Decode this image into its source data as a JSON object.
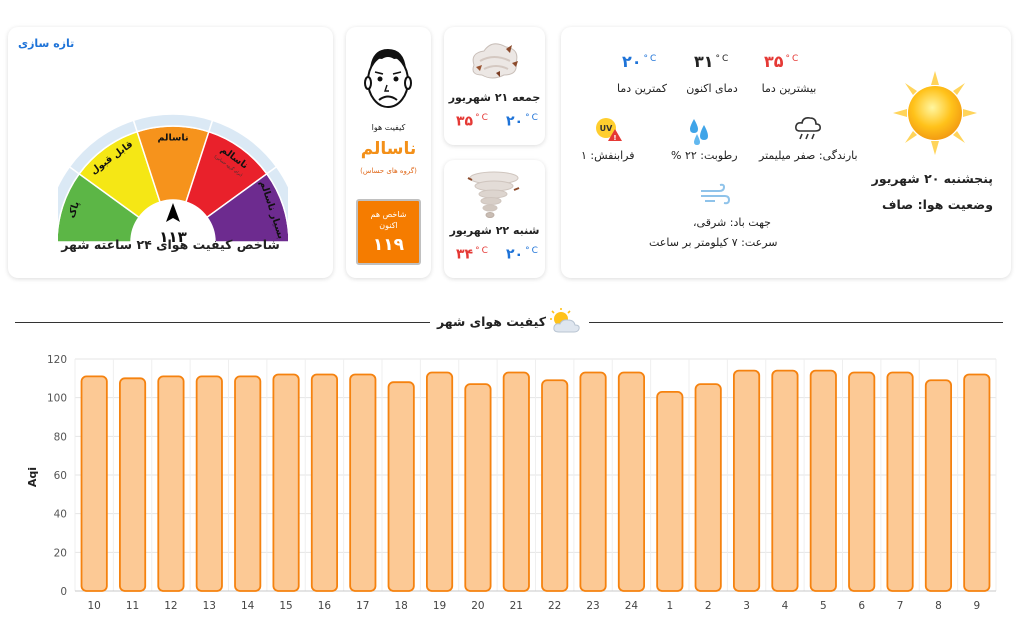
{
  "gauge_card": {
    "refresh_label": "تازه سازی",
    "title": "شاخص کیفیت هوای ۲۴ ساعته شهر",
    "value_label": "۱۱۳",
    "value": 113,
    "scale_max": 300,
    "segments": [
      {
        "label": "پاک",
        "color": "#5cb646"
      },
      {
        "label": "قابل قبول",
        "color": "#f5e715"
      },
      {
        "label": "ناسالم",
        "color": "#f6931c"
      },
      {
        "label": "ناسالم",
        "color": "#e9212b"
      },
      {
        "label": "بسیار ناسالم",
        "color": "#6d2b8f"
      }
    ],
    "segment_sublabel": "(برای گروه حساس)"
  },
  "current_aqi": {
    "caption": "کیفیت هوا",
    "status": "ناسالم",
    "group": "(گروه های حساس)",
    "box_label_line1": "شاخص هم",
    "box_label_line2": "اکنون",
    "box_value": "۱۱۹",
    "icon": "sad-face-icon"
  },
  "forecast": [
    {
      "date": "جمعه ۲۱ شهریور",
      "low": "۲۰",
      "high": "۳۵",
      "icon": "dust-icon"
    },
    {
      "date": "شنبه ۲۲ شهریور",
      "low": "۲۰",
      "high": "۳۴",
      "icon": "tornado-icon"
    }
  ],
  "today": {
    "date": "پنجشنبه ۲۰ شهریور",
    "condition": "وضعیت هوا: صاف",
    "max_temp": "۳۵",
    "max_label": "بیشترین دما",
    "current_temp": "۳۱",
    "current_label": "دمای اکنون",
    "min_temp": "۲۰",
    "min_label": "کمترین دما",
    "rain": "بارندگی: صفر میلیمتر",
    "humidity": "رطوبت: ۲۲ %",
    "uv": "فرابنفش: ۱",
    "wind_dir": "جهت باد: شرقی،",
    "wind_speed": "سرعت: ۷ کیلومتر بر ساعت",
    "unit": "C",
    "colors": {
      "max": "#e53935",
      "current": "#222222",
      "min": "#1e73d8"
    }
  },
  "section": {
    "title": "کیفیت هوای شهر"
  },
  "chart_data": {
    "type": "bar",
    "ylabel": "Aqi",
    "xlabel": "",
    "ylim": [
      0,
      120
    ],
    "yticks": [
      0,
      20,
      40,
      60,
      80,
      100,
      120
    ],
    "categories": [
      "10",
      "11",
      "12",
      "13",
      "14",
      "15",
      "16",
      "17",
      "18",
      "19",
      "20",
      "21",
      "22",
      "23",
      "24",
      "1",
      "2",
      "3",
      "4",
      "5",
      "6",
      "7",
      "8",
      "9"
    ],
    "values": [
      111,
      110,
      111,
      111,
      111,
      112,
      112,
      112,
      108,
      113,
      107,
      113,
      109,
      113,
      113,
      103,
      107,
      114,
      114,
      114,
      113,
      113,
      109,
      112
    ],
    "grid": true,
    "bar_fill": "#fcc995",
    "bar_stroke": "#f5820f"
  }
}
